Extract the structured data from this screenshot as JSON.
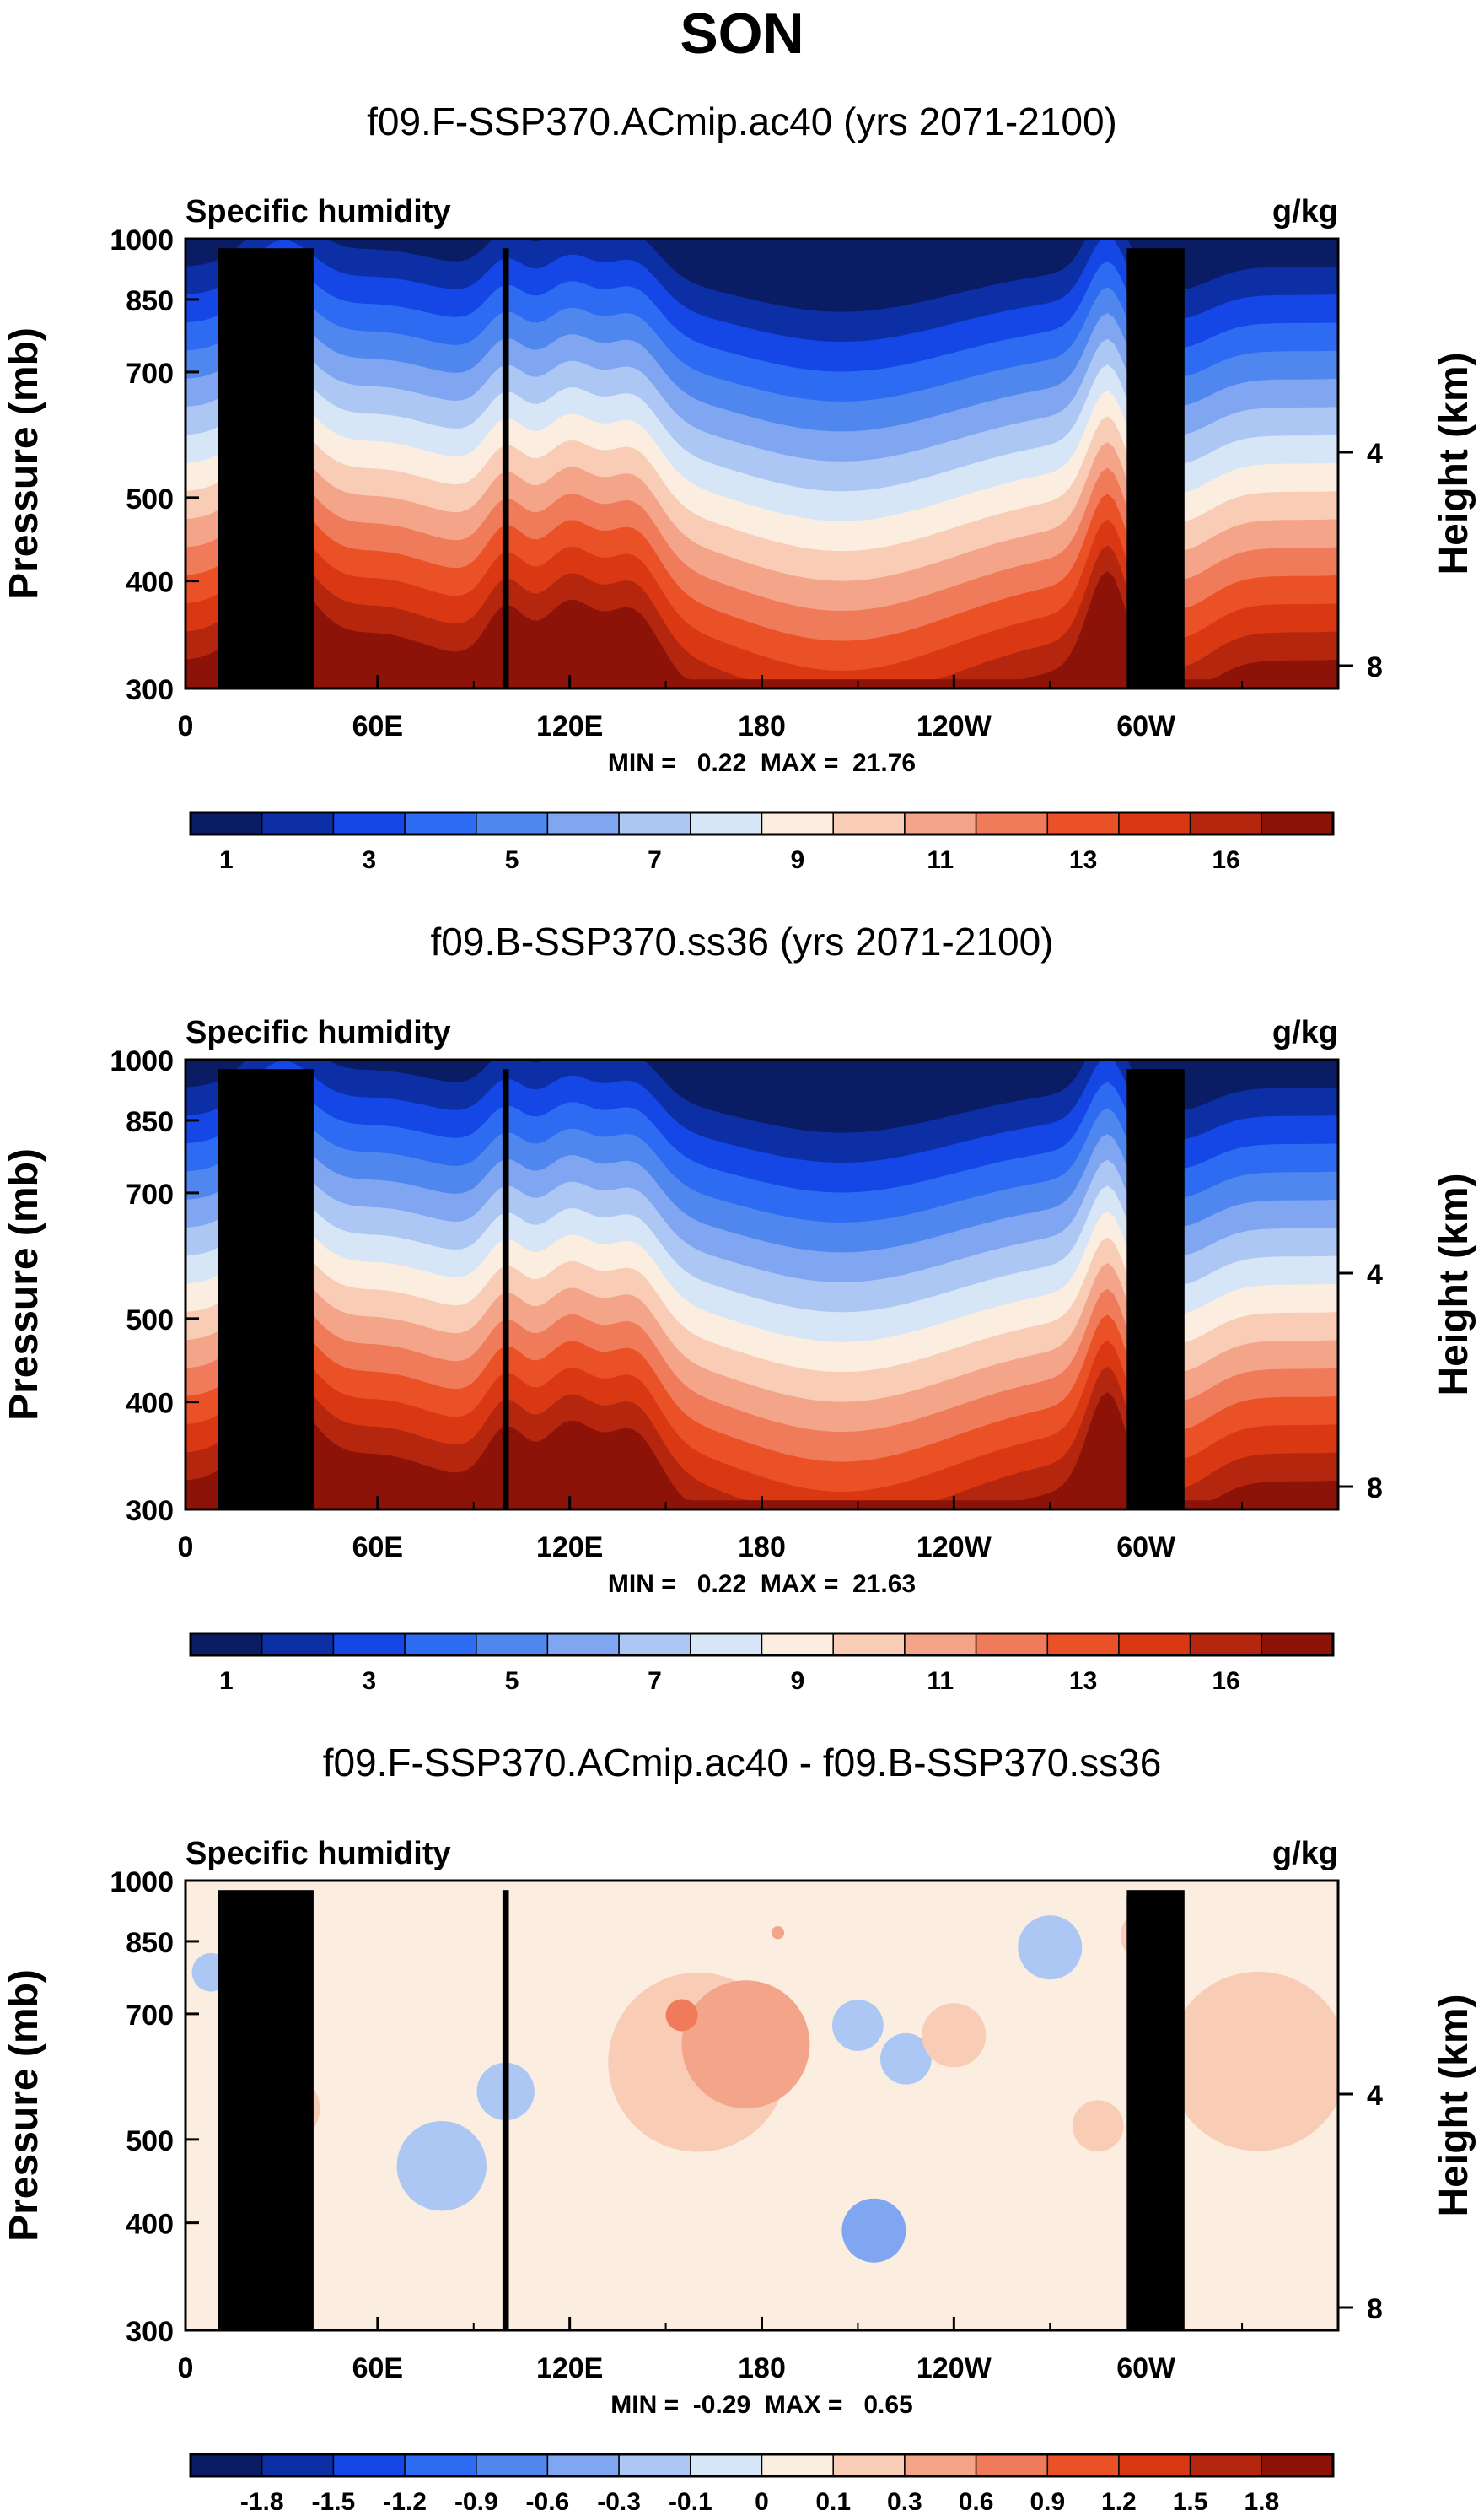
{
  "title": "SON",
  "colors": {
    "abs_palette": [
      "#0a1c64",
      "#0d2fa6",
      "#1547e6",
      "#2d6cf2",
      "#4f87ee",
      "#80a6f1",
      "#adc7f5",
      "#d7e6f7",
      "#fbeee1",
      "#f8ccb5",
      "#f4a488",
      "#ef7b5a",
      "#eb5126",
      "#d93812",
      "#b5260f",
      "#8d1208"
    ],
    "diff_palette": [
      "#0a1c64",
      "#0d2fa6",
      "#1547e6",
      "#2d6cf2",
      "#4f87ee",
      "#80a6f1",
      "#adc7f5",
      "#d7e6f7",
      "#fbeee1",
      "#f8ccb5",
      "#f4a488",
      "#ef7b5a",
      "#eb5126",
      "#d93812",
      "#b5260f",
      "#8d1208"
    ],
    "topography": "#000000"
  },
  "chart_data": [
    {
      "type": "heatmap",
      "title": "f09.F-SSP370.ACmip.ac40 (yrs 2071-2100)",
      "left_label": "Specific humidity",
      "right_label": "g/kg",
      "ylabel": "Pressure (mb)",
      "y2label": "Height (km)",
      "xticks": [
        "0",
        "60E",
        "120E",
        "180",
        "120W",
        "60W"
      ],
      "xtick_lon": [
        0,
        60,
        120,
        180,
        240,
        300
      ],
      "xlim": [
        0,
        360
      ],
      "yticks": [
        "300",
        "400",
        "500",
        "700",
        "850",
        "1000"
      ],
      "ytick_p": [
        300,
        400,
        500,
        700,
        850,
        1000
      ],
      "ylim": [
        1000,
        300
      ],
      "height_ticks": [
        "8",
        "4"
      ],
      "height_km": [
        8,
        4
      ],
      "stats": "MIN =   0.22  MAX =  21.76",
      "min": 0.22,
      "max": 21.76,
      "colorbar_labels": [
        "1",
        "3",
        "5",
        "7",
        "9",
        "11",
        "13",
        "16"
      ],
      "colorbar_label_index": [
        1,
        3,
        5,
        7,
        9,
        11,
        13,
        15
      ]
    },
    {
      "type": "heatmap",
      "title": "f09.B-SSP370.ss36 (yrs 2071-2100)",
      "left_label": "Specific humidity",
      "right_label": "g/kg",
      "ylabel": "Pressure (mb)",
      "y2label": "Height (km)",
      "xticks": [
        "0",
        "60E",
        "120E",
        "180",
        "120W",
        "60W"
      ],
      "xtick_lon": [
        0,
        60,
        120,
        180,
        240,
        300
      ],
      "xlim": [
        0,
        360
      ],
      "yticks": [
        "300",
        "400",
        "500",
        "700",
        "850",
        "1000"
      ],
      "ytick_p": [
        300,
        400,
        500,
        700,
        850,
        1000
      ],
      "ylim": [
        1000,
        300
      ],
      "height_ticks": [
        "8",
        "4"
      ],
      "height_km": [
        8,
        4
      ],
      "stats": "MIN =   0.22  MAX =  21.63",
      "min": 0.22,
      "max": 21.63,
      "colorbar_labels": [
        "1",
        "3",
        "5",
        "7",
        "9",
        "11",
        "13",
        "16"
      ],
      "colorbar_label_index": [
        1,
        3,
        5,
        7,
        9,
        11,
        13,
        15
      ]
    },
    {
      "type": "heatmap",
      "title": "f09.F-SSP370.ACmip.ac40 - f09.B-SSP370.ss36",
      "left_label": "Specific humidity",
      "right_label": "g/kg",
      "ylabel": "Pressure (mb)",
      "y2label": "Height (km)",
      "xticks": [
        "0",
        "60E",
        "120E",
        "180",
        "120W",
        "60W"
      ],
      "xtick_lon": [
        0,
        60,
        120,
        180,
        240,
        300
      ],
      "xlim": [
        0,
        360
      ],
      "yticks": [
        "300",
        "400",
        "500",
        "700",
        "850",
        "1000"
      ],
      "ytick_p": [
        300,
        400,
        500,
        700,
        850,
        1000
      ],
      "ylim": [
        1000,
        300
      ],
      "height_ticks": [
        "8",
        "4"
      ],
      "height_km": [
        8,
        4
      ],
      "stats": "MIN =  -0.29  MAX =   0.65",
      "min": -0.29,
      "max": 0.65,
      "colorbar_labels": [
        "-1.8",
        "-1.5",
        "-1.2",
        "-0.9",
        "-0.6",
        "-0.3",
        "-0.1",
        "0",
        "0.1",
        "0.3",
        "0.6",
        "0.9",
        "1.2",
        "1.5",
        "1.8"
      ],
      "colorbar_label_index": [
        1,
        2,
        3,
        4,
        5,
        6,
        7,
        8,
        9,
        10,
        11,
        12,
        13,
        14,
        15
      ]
    }
  ]
}
